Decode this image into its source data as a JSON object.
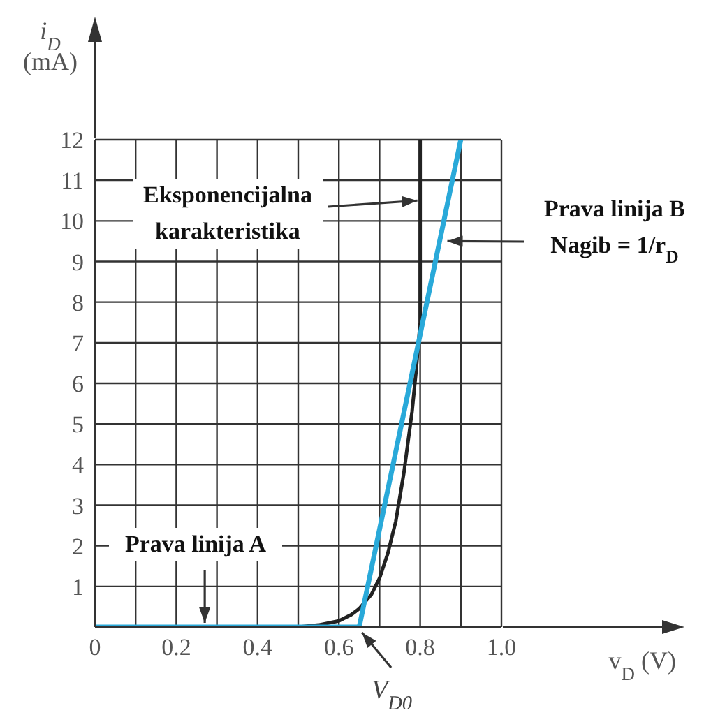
{
  "chart_data": {
    "type": "line",
    "xlabel": "v$_{D}$ (V)",
    "ylabel": "i$_{D}$\n(mA)",
    "xlim": [
      0,
      1.0
    ],
    "ylim": [
      0,
      12
    ],
    "xticks": [
      0,
      {
        "value": 0.1,
        "label": null
      },
      0.2,
      {
        "value": 0.3,
        "label": null
      },
      0.4,
      {
        "value": 0.5,
        "label": null
      },
      0.6,
      {
        "value": 0.7,
        "label": null
      },
      0.8,
      {
        "value": 0.9,
        "label": null
      },
      {
        "value": 1.0,
        "label": "1.0"
      }
    ],
    "yticks": [
      1,
      2,
      3,
      4,
      5,
      6,
      7,
      8,
      9,
      10,
      11,
      12
    ],
    "grid": true,
    "marker": "none",
    "line_style": "solid",
    "series": [
      {
        "color": "#222222",
        "x": [
          0,
          0.5,
          0.55,
          0.6,
          0.63,
          0.65,
          0.68,
          0.7,
          0.72,
          0.74,
          0.76,
          0.78,
          0.79,
          0.8,
          0.8
        ],
        "values": [
          0,
          0,
          0.05,
          0.15,
          0.3,
          0.45,
          0.8,
          1.2,
          1.8,
          2.6,
          3.8,
          5.3,
          6.3,
          7.5,
          12
        ]
      },
      {
        "color": "#29a9d9",
        "x": [
          0,
          0.65,
          0.9
        ],
        "values": [
          0,
          0,
          12
        ]
      }
    ],
    "annotations": [
      {
        "text": "Eksponencijalna\nkarakteristika",
        "x": 0.8,
        "y": 10.5
      },
      {
        "text": "Prava linija B\nNagib = 1/r$_{D}$",
        "x": 0.86,
        "y": 9.5
      },
      {
        "text": "Prava linija A",
        "x": 0.27,
        "y": 0
      },
      {
        "text": "V$_{D0}$",
        "x": 0.65,
        "y": 0
      }
    ]
  }
}
